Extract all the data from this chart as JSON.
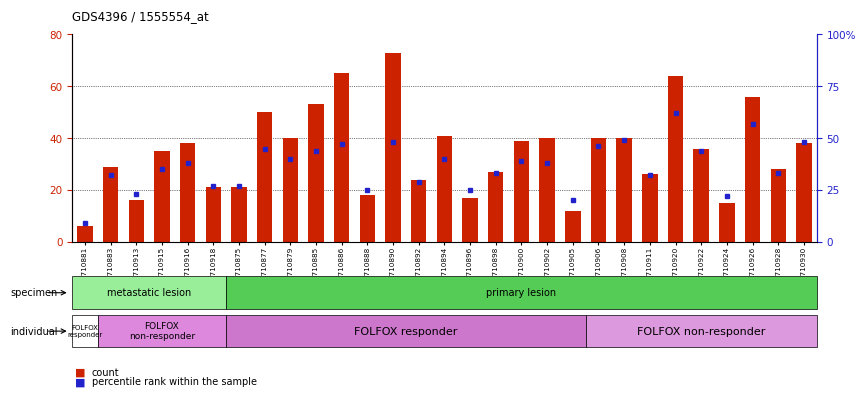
{
  "title": "GDS4396 / 1555554_at",
  "samples": [
    "GSM710881",
    "GSM710883",
    "GSM710913",
    "GSM710915",
    "GSM710916",
    "GSM710918",
    "GSM710875",
    "GSM710877",
    "GSM710879",
    "GSM710885",
    "GSM710886",
    "GSM710888",
    "GSM710890",
    "GSM710892",
    "GSM710894",
    "GSM710896",
    "GSM710898",
    "GSM710900",
    "GSM710902",
    "GSM710905",
    "GSM710906",
    "GSM710908",
    "GSM710911",
    "GSM710920",
    "GSM710922",
    "GSM710924",
    "GSM710926",
    "GSM710928",
    "GSM710930"
  ],
  "counts": [
    6,
    29,
    16,
    35,
    38,
    21,
    21,
    50,
    40,
    53,
    65,
    18,
    73,
    24,
    41,
    17,
    27,
    39,
    40,
    12,
    40,
    40,
    26,
    64,
    36,
    15,
    56,
    28,
    38
  ],
  "percentiles": [
    9,
    32,
    23,
    35,
    38,
    27,
    27,
    45,
    40,
    44,
    47,
    25,
    48,
    29,
    40,
    25,
    33,
    39,
    38,
    20,
    46,
    49,
    32,
    62,
    44,
    22,
    57,
    33,
    48
  ],
  "bar_color": "#cc2200",
  "dot_color": "#2222cc",
  "ylim_left": [
    0,
    80
  ],
  "ylim_right": [
    0,
    100
  ],
  "yticks_left": [
    0,
    20,
    40,
    60,
    80
  ],
  "yticks_right": [
    0,
    25,
    50,
    75,
    100
  ],
  "ytick_labels_right": [
    "0",
    "25",
    "50",
    "75",
    "100%"
  ],
  "specimen_groups": [
    {
      "label": "metastatic lesion",
      "start": 0,
      "end": 6,
      "color": "#99ee99"
    },
    {
      "label": "primary lesion",
      "start": 6,
      "end": 29,
      "color": "#55cc55"
    }
  ],
  "individual_groups": [
    {
      "label": "FOLFOX\nresponder",
      "start": 0,
      "end": 1,
      "color": "#ffffff",
      "fontsize": 5.0
    },
    {
      "label": "FOLFOX\nnon-responder",
      "start": 1,
      "end": 6,
      "color": "#dd88dd",
      "fontsize": 6.5
    },
    {
      "label": "FOLFOX responder",
      "start": 6,
      "end": 20,
      "color": "#cc77cc",
      "fontsize": 8
    },
    {
      "label": "FOLFOX non-responder",
      "start": 20,
      "end": 29,
      "color": "#dd99dd",
      "fontsize": 8
    }
  ],
  "legend_count_label": "count",
  "legend_percentile_label": "percentile rank within the sample",
  "specimen_label": "specimen",
  "individual_label": "individual"
}
